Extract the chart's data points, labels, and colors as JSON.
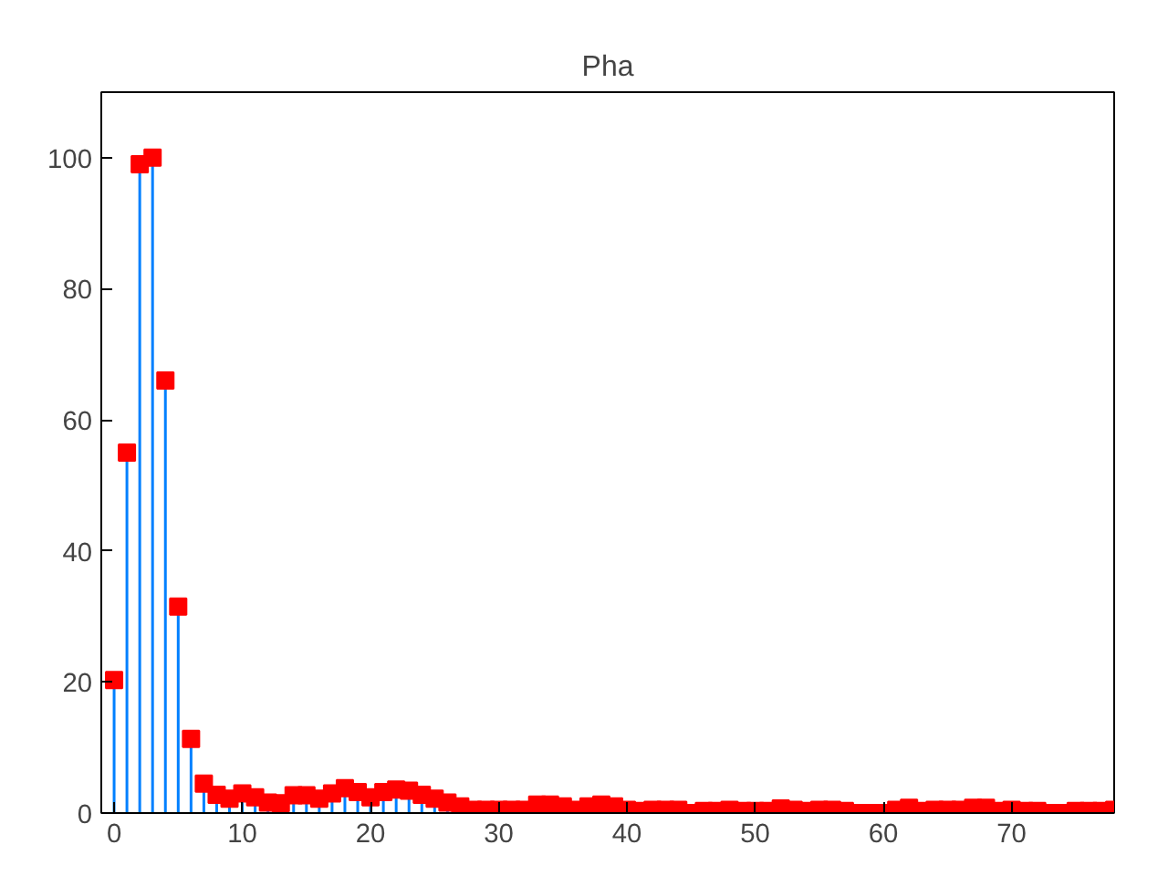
{
  "chart_data": {
    "type": "lollipop",
    "title": "Pha",
    "x": [
      0,
      1,
      2,
      3,
      4,
      5,
      6,
      7,
      8,
      9,
      10,
      11,
      12,
      13,
      14,
      15,
      16,
      17,
      18,
      19,
      20,
      21,
      22,
      23,
      24,
      25,
      26,
      27,
      28,
      29,
      30,
      31,
      32,
      33,
      34,
      35,
      36,
      37,
      38,
      39,
      40,
      41,
      42,
      43,
      44,
      45,
      46,
      47,
      48,
      49,
      50,
      51,
      52,
      53,
      54,
      55,
      56,
      57,
      58,
      59,
      60,
      61,
      62,
      63,
      64,
      65,
      66,
      67,
      68,
      69,
      70,
      71,
      72,
      73,
      74,
      75,
      76,
      77,
      78
    ],
    "series": [
      {
        "color": "#ff0000",
        "values": [
          20.3,
          55,
          99,
          100,
          66,
          31.5,
          11.3,
          4.5,
          2.8,
          2.2,
          3,
          2.4,
          1.6,
          1.5,
          2.7,
          2.7,
          2.2,
          3,
          3.8,
          3.2,
          2.4,
          3.2,
          3.6,
          3.4,
          2.8,
          2.2,
          1.6,
          1,
          0.5,
          0.5,
          0.5,
          0.5,
          0.5,
          1.3,
          1.3,
          1,
          0.5,
          1,
          1.3,
          1,
          0.5,
          0.3,
          0.5,
          0.5,
          0.5,
          0,
          0.3,
          0.3,
          0.5,
          0.3,
          0.3,
          0.3,
          0.7,
          0.5,
          0.3,
          0.5,
          0.5,
          0.3,
          0,
          0,
          0,
          0.5,
          0.8,
          0.3,
          0.5,
          0.5,
          0.5,
          0.8,
          0.8,
          0.3,
          0.5,
          0.3,
          0.3,
          0,
          0,
          0.3,
          0.3,
          0.3,
          0.5
        ]
      }
    ],
    "xlim": [
      -1,
      78
    ],
    "ylim": [
      0,
      110
    ],
    "xticks": [
      0,
      10,
      20,
      30,
      40,
      50,
      60,
      70
    ],
    "yticks": [
      0,
      20,
      40,
      60,
      80,
      100
    ],
    "marker": "square",
    "grid": false
  }
}
